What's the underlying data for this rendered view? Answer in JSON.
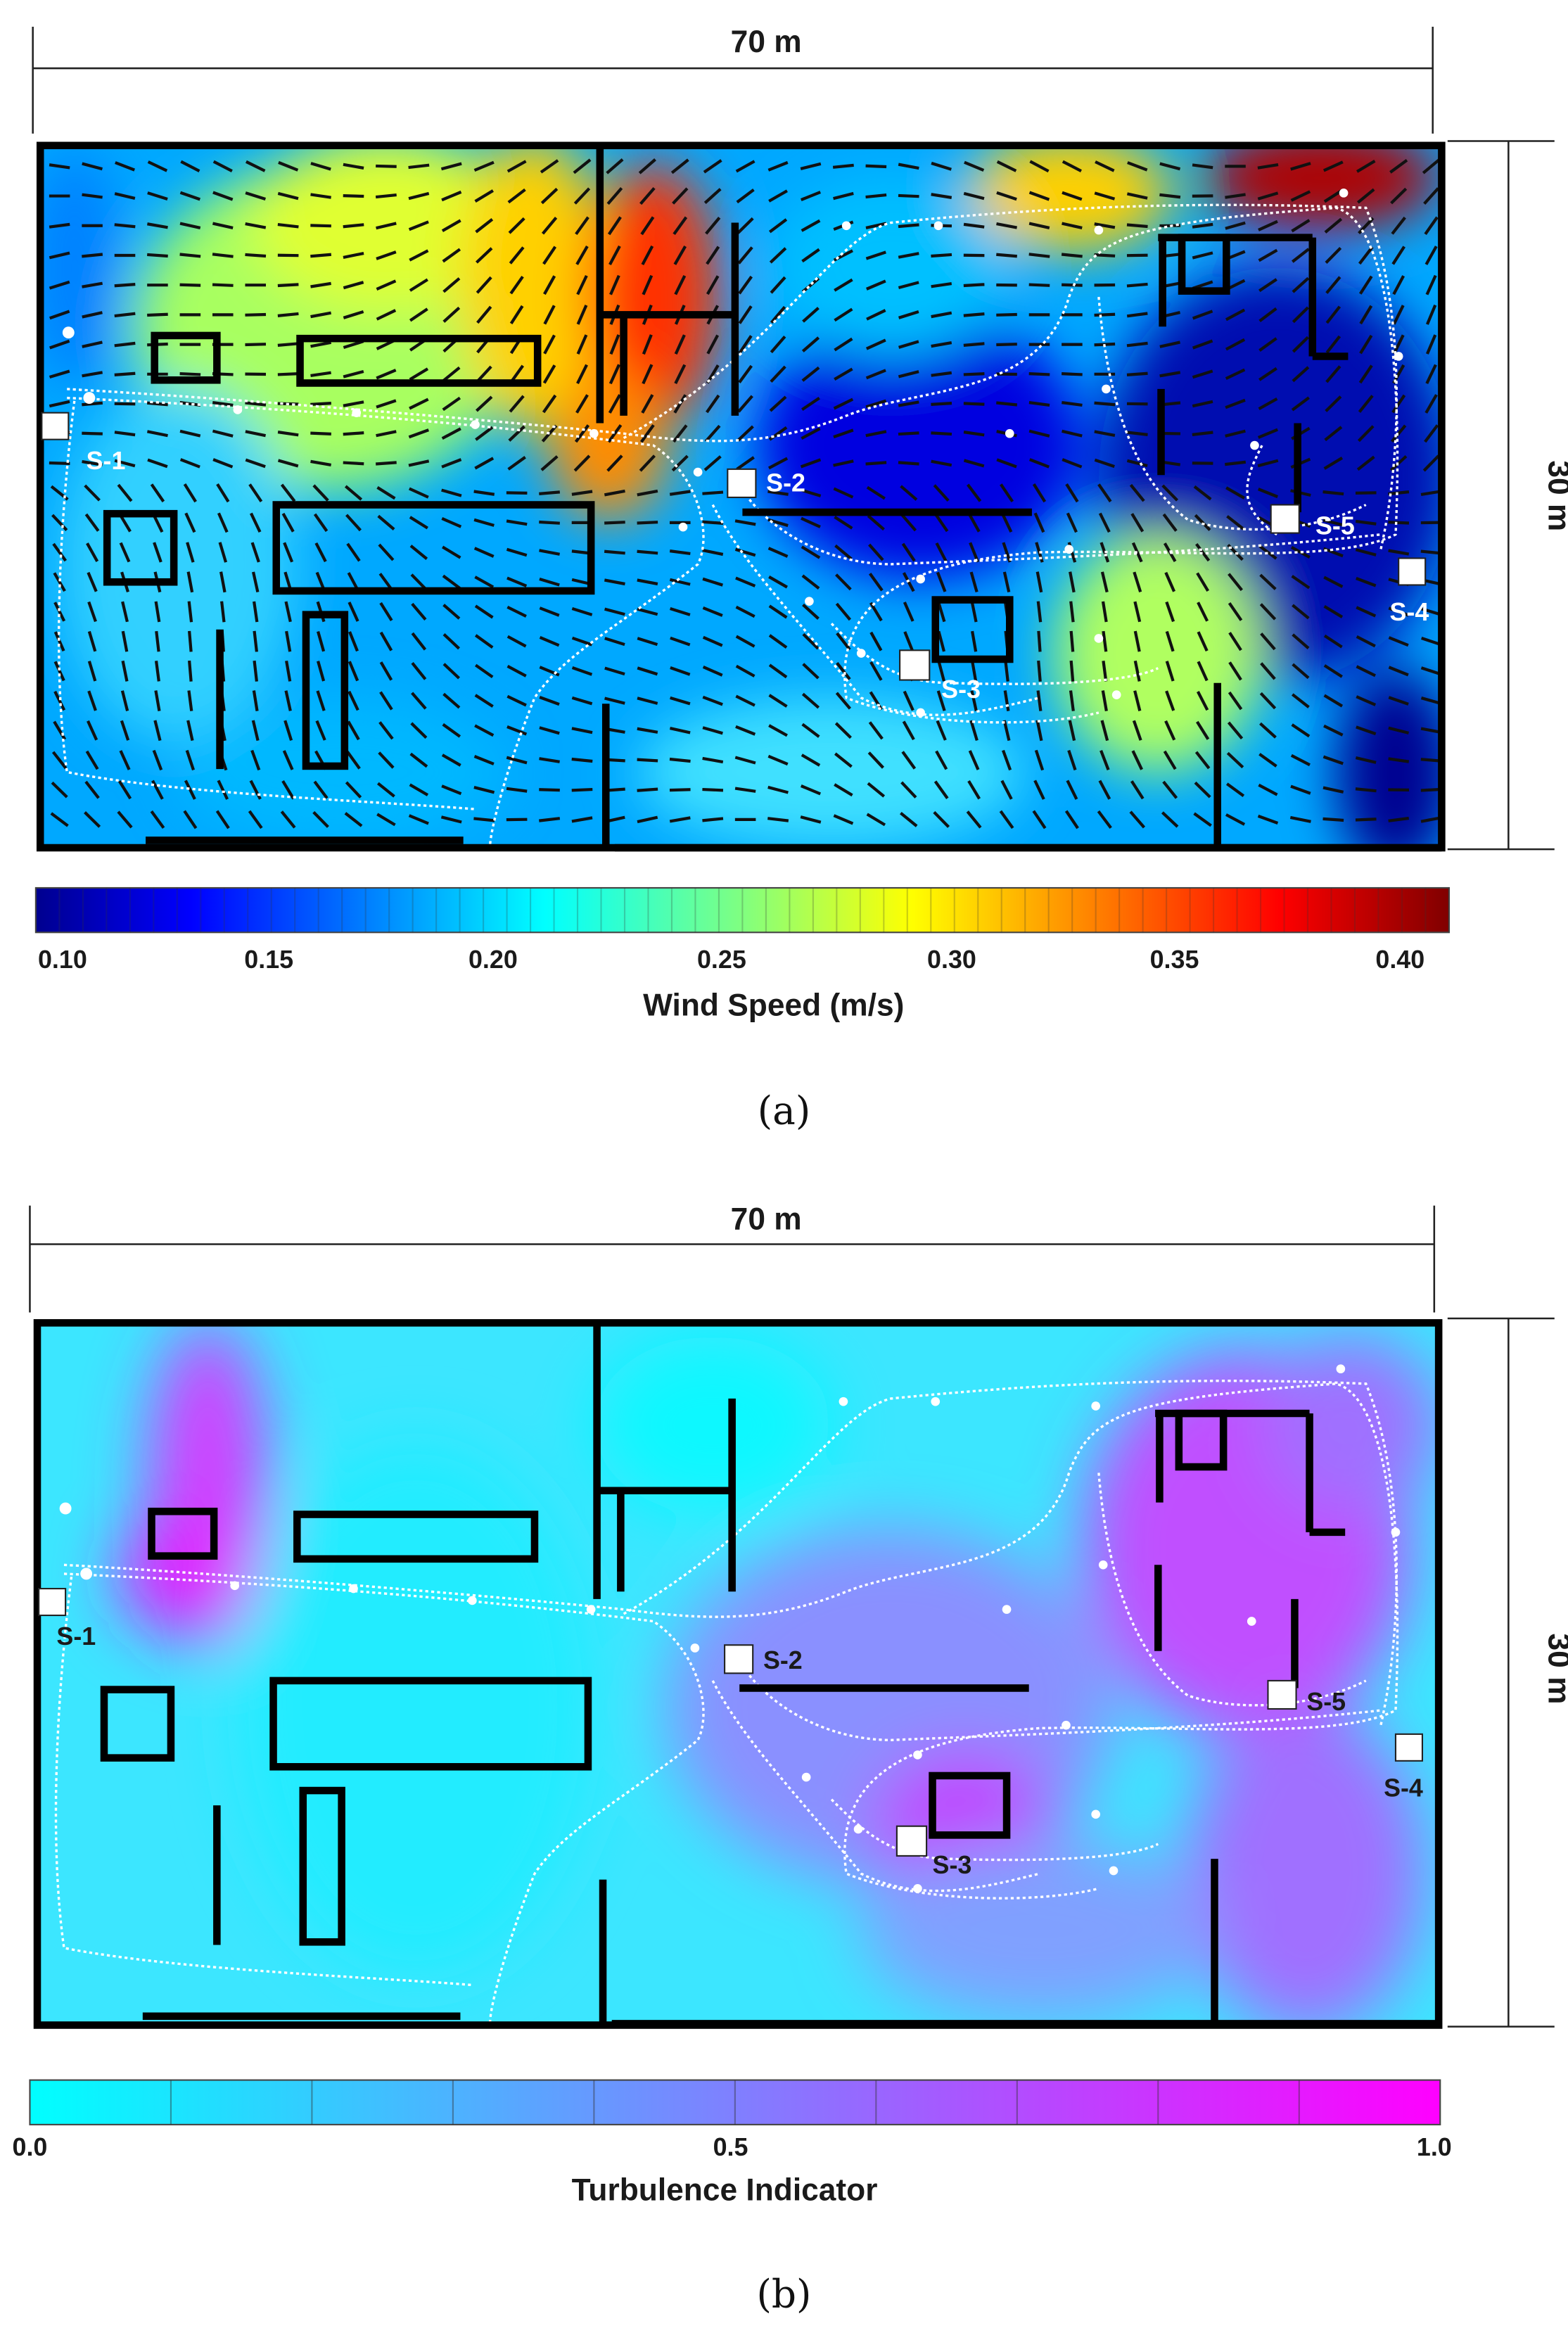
{
  "panel_a": {
    "width_label": "70 m",
    "height_label": "30 m",
    "colorbar_title": "Wind Speed (m/s)",
    "colorbar_ticks": [
      "0.10",
      "0.15",
      "0.20",
      "0.25",
      "0.30",
      "0.35",
      "0.40"
    ],
    "caption": "(a)",
    "sensors": [
      "S-1",
      "S-2",
      "S-3",
      "S-4",
      "S-5"
    ]
  },
  "panel_b": {
    "width_label": "70 m",
    "height_label": "30 m",
    "colorbar_title": "Turbulence Indicator",
    "colorbar_ticks": [
      "0.0",
      "0.5",
      "1.0"
    ],
    "caption": "(b)",
    "sensors": [
      "S-1",
      "S-2",
      "S-3",
      "S-4",
      "S-5"
    ]
  },
  "colors": {
    "walls": "#000000",
    "trajectories": "#ffffff",
    "jet_scale": [
      "#00008f",
      "#0000ff",
      "#0080ff",
      "#00ffff",
      "#80ff80",
      "#ffff00",
      "#ff8000",
      "#ff0000",
      "#800000"
    ],
    "cool_scale": [
      "#00ffff",
      "#ff00ff"
    ]
  }
}
